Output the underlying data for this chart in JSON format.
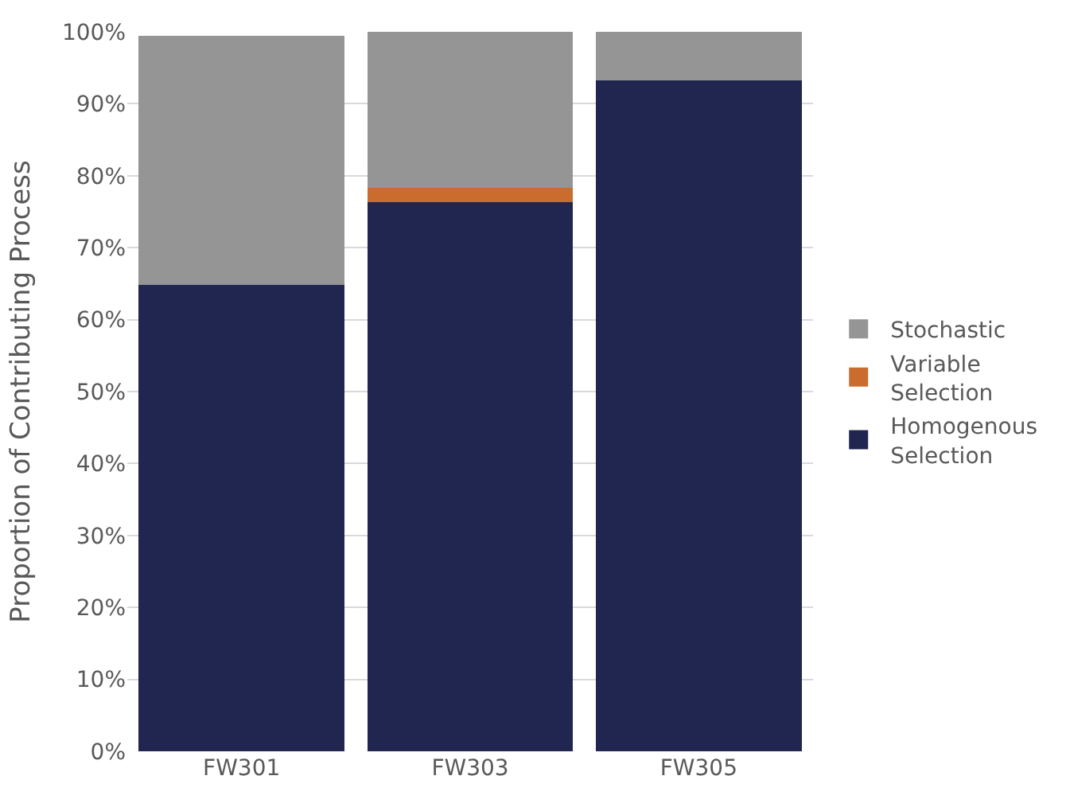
{
  "chart_data": {
    "type": "bar",
    "stacked": true,
    "ylabel": "Proportion of Contributing Process",
    "categories": [
      "FW301",
      "FW303",
      "FW305"
    ],
    "series": [
      {
        "name": "Homogenous Selection",
        "color": "#20264f",
        "values": [
          64.8,
          76.3,
          93.3
        ]
      },
      {
        "name": "Variable Selection",
        "color": "#c96c2e",
        "values": [
          0,
          2.0,
          0
        ]
      },
      {
        "name": "Stochastic",
        "color": "#959595",
        "values": [
          34.7,
          21.7,
          6.7
        ]
      }
    ],
    "ylim": [
      0,
      100
    ],
    "yticks": [
      {
        "value": 0,
        "label": "0%"
      },
      {
        "value": 10,
        "label": "10%"
      },
      {
        "value": 20,
        "label": "20%"
      },
      {
        "value": 30,
        "label": "30%"
      },
      {
        "value": 40,
        "label": "40%"
      },
      {
        "value": 50,
        "label": "50%"
      },
      {
        "value": 60,
        "label": "60%"
      },
      {
        "value": 70,
        "label": "70%"
      },
      {
        "value": 80,
        "label": "80%"
      },
      {
        "value": 90,
        "label": "90%"
      },
      {
        "value": 100,
        "label": "100%"
      }
    ],
    "grid": "y",
    "legend": "right"
  }
}
